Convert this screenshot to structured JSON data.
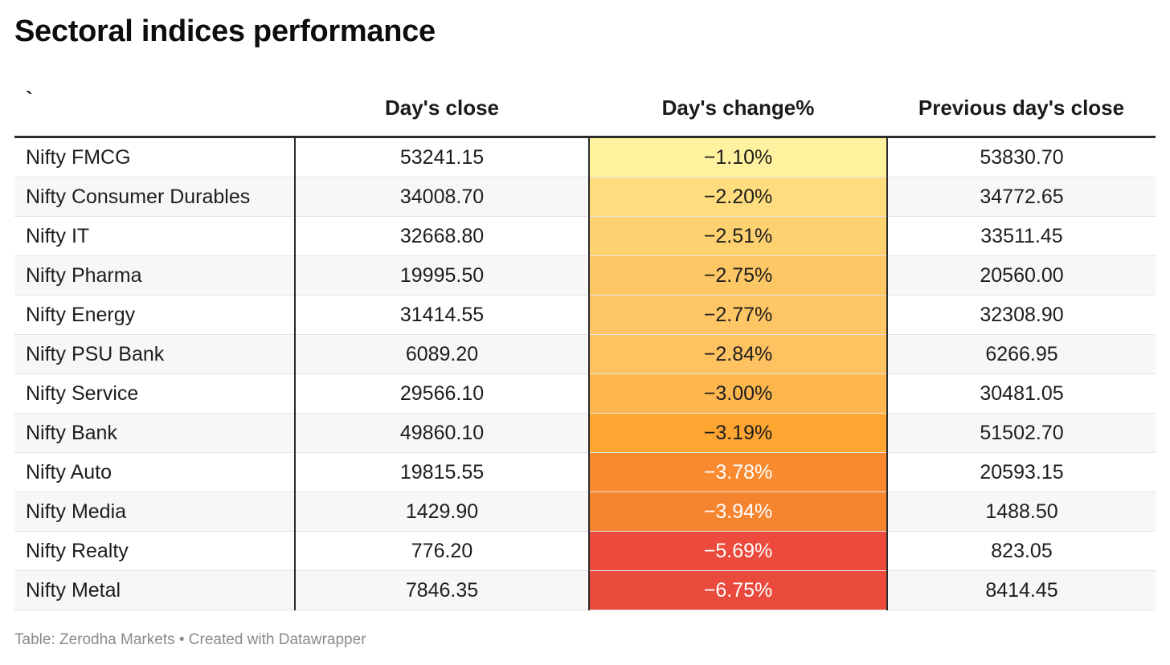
{
  "title": "Sectoral indices performance",
  "footer": "Table: Zerodha Markets • Created with Datawrapper",
  "chart_data": {
    "type": "table",
    "columns": [
      "`",
      "Day's close",
      "Day's change%",
      "Previous day's close"
    ],
    "rows": [
      {
        "name": "Nifty FMCG",
        "close": "53241.15",
        "change": "−1.10%",
        "prev": "53830.70",
        "color": "#fff29f",
        "text_color": "#1d1d1d"
      },
      {
        "name": "Nifty Consumer Durables",
        "close": "34008.70",
        "change": "−2.20%",
        "prev": "34772.65",
        "color": "#ffdd7f",
        "text_color": "#1d1d1d"
      },
      {
        "name": "Nifty IT",
        "close": "32668.80",
        "change": "−2.51%",
        "prev": "33511.45",
        "color": "#fed170",
        "text_color": "#1d1d1d"
      },
      {
        "name": "Nifty Pharma",
        "close": "19995.50",
        "change": "−2.75%",
        "prev": "20560.00",
        "color": "#fec765",
        "text_color": "#1d1d1d"
      },
      {
        "name": "Nifty Energy",
        "close": "31414.55",
        "change": "−2.77%",
        "prev": "32308.90",
        "color": "#fec664",
        "text_color": "#1d1d1d"
      },
      {
        "name": "Nifty PSU Bank",
        "close": "6089.20",
        "change": "−2.84%",
        "prev": "6266.95",
        "color": "#fec260",
        "text_color": "#1d1d1d"
      },
      {
        "name": "Nifty Service",
        "close": "29566.10",
        "change": "−3.00%",
        "prev": "30481.05",
        "color": "#feb74e",
        "text_color": "#1d1d1d"
      },
      {
        "name": "Nifty Bank",
        "close": "49860.10",
        "change": "−3.19%",
        "prev": "51502.70",
        "color": "#fea631",
        "text_color": "#1d1d1d"
      },
      {
        "name": "Nifty Auto",
        "close": "19815.55",
        "change": "−3.78%",
        "prev": "20593.15",
        "color": "#f98a2f",
        "text_color": "#ffffff"
      },
      {
        "name": "Nifty Media",
        "close": "1429.90",
        "change": "−3.94%",
        "prev": "1488.50",
        "color": "#f5842f",
        "text_color": "#ffffff"
      },
      {
        "name": "Nifty Realty",
        "close": "776.20",
        "change": "−5.69%",
        "prev": "823.05",
        "color": "#ec4a3c",
        "text_color": "#ffffff"
      },
      {
        "name": "Nifty Metal",
        "close": "7846.35",
        "change": "−6.75%",
        "prev": "8414.45",
        "color": "#ea4a3c",
        "text_color": "#ffffff"
      }
    ]
  }
}
